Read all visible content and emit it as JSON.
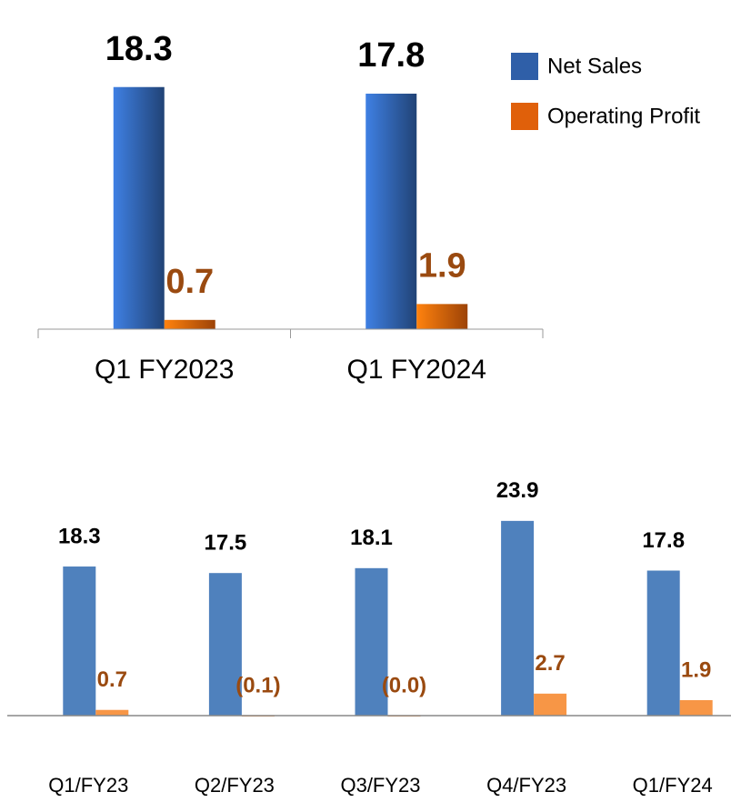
{
  "chart_data": [
    {
      "type": "bar",
      "categories": [
        "Q1 FY2023",
        "Q1 FY2024"
      ],
      "ylim": [
        0,
        20
      ],
      "legend": "right",
      "gradient": true,
      "series": [
        {
          "name": "Net Sales",
          "color": "#2f5fa8",
          "label_color": "#000000",
          "values": [
            18.3,
            17.8
          ]
        },
        {
          "name": "Operating Profit",
          "color": "#e0600a",
          "label_color": "#9a4a10",
          "values": [
            0.7,
            1.9
          ]
        }
      ]
    },
    {
      "type": "bar",
      "categories": [
        "Q1/FY23",
        "Q2/FY23",
        "Q3/FY23",
        "Q4/FY23",
        "Q1/FY24"
      ],
      "ylim": [
        0,
        25
      ],
      "gradient": false,
      "series": [
        {
          "name": "Net Sales",
          "color": "#4f81bd",
          "label_color": "#000000",
          "values": [
            18.3,
            17.5,
            18.1,
            23.9,
            17.8
          ]
        },
        {
          "name": "Operating Profit",
          "color": "#f79646",
          "label_color": "#9a4a10",
          "values": [
            0.7,
            -0.1,
            -0.04,
            2.7,
            1.9
          ],
          "value_labels": [
            "0.7",
            "(0.1)",
            "(0.0)",
            "2.7",
            "1.9"
          ]
        }
      ]
    }
  ]
}
